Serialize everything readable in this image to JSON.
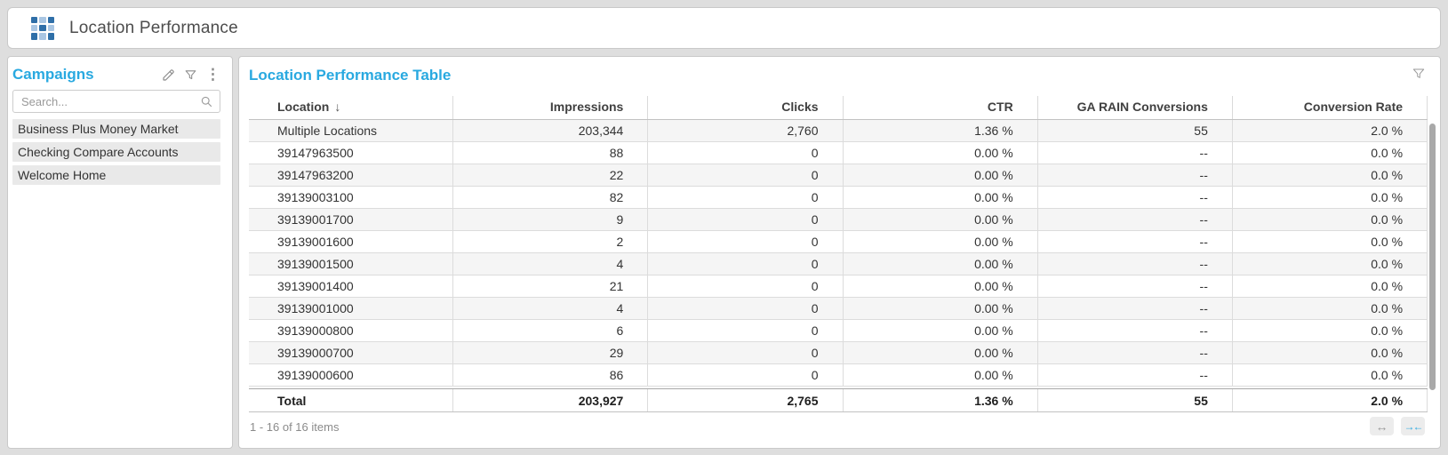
{
  "colors": {
    "accent_blue": "#29a9e0",
    "grid_icon_dark_blue": "#2f6fa8",
    "grid_icon_light_blue": "#a9c6e3"
  },
  "header": {
    "title": "Location Performance"
  },
  "sidebar": {
    "title": "Campaigns",
    "search_placeholder": "Search...",
    "items": [
      "Business Plus Money Market",
      "Checking Compare Accounts",
      "Welcome Home"
    ]
  },
  "table_panel": {
    "title": "Location Performance Table",
    "columns": [
      "Location",
      "Impressions",
      "Clicks",
      "CTR",
      "GA RAIN Conversions",
      "Conversion Rate"
    ],
    "sorted_column": "Location",
    "sort_indicator": "↓",
    "rows": [
      [
        "Multiple Locations",
        "203,344",
        "2,760",
        "1.36 %",
        "55",
        "2.0 %"
      ],
      [
        "39147963500",
        "88",
        "0",
        "0.00 %",
        "--",
        "0.0 %"
      ],
      [
        "39147963200",
        "22",
        "0",
        "0.00 %",
        "--",
        "0.0 %"
      ],
      [
        "39139003100",
        "82",
        "0",
        "0.00 %",
        "--",
        "0.0 %"
      ],
      [
        "39139001700",
        "9",
        "0",
        "0.00 %",
        "--",
        "0.0 %"
      ],
      [
        "39139001600",
        "2",
        "0",
        "0.00 %",
        "--",
        "0.0 %"
      ],
      [
        "39139001500",
        "4",
        "0",
        "0.00 %",
        "--",
        "0.0 %"
      ],
      [
        "39139001400",
        "21",
        "0",
        "0.00 %",
        "--",
        "0.0 %"
      ],
      [
        "39139001000",
        "4",
        "0",
        "0.00 %",
        "--",
        "0.0 %"
      ],
      [
        "39139000800",
        "6",
        "0",
        "0.00 %",
        "--",
        "0.0 %"
      ],
      [
        "39139000700",
        "29",
        "0",
        "0.00 %",
        "--",
        "0.0 %"
      ],
      [
        "39139000600",
        "86",
        "0",
        "0.00 %",
        "--",
        "0.0 %"
      ]
    ],
    "total_row": [
      "Total",
      "203,927",
      "2,765",
      "1.36 %",
      "55",
      "2.0 %"
    ],
    "footer": {
      "items_text": "1 - 16 of 16 items"
    }
  },
  "icons": {
    "kebab_glyph": "⋮",
    "expand_columns_glyph": "↔",
    "collapse_columns_glyph": "→←"
  }
}
